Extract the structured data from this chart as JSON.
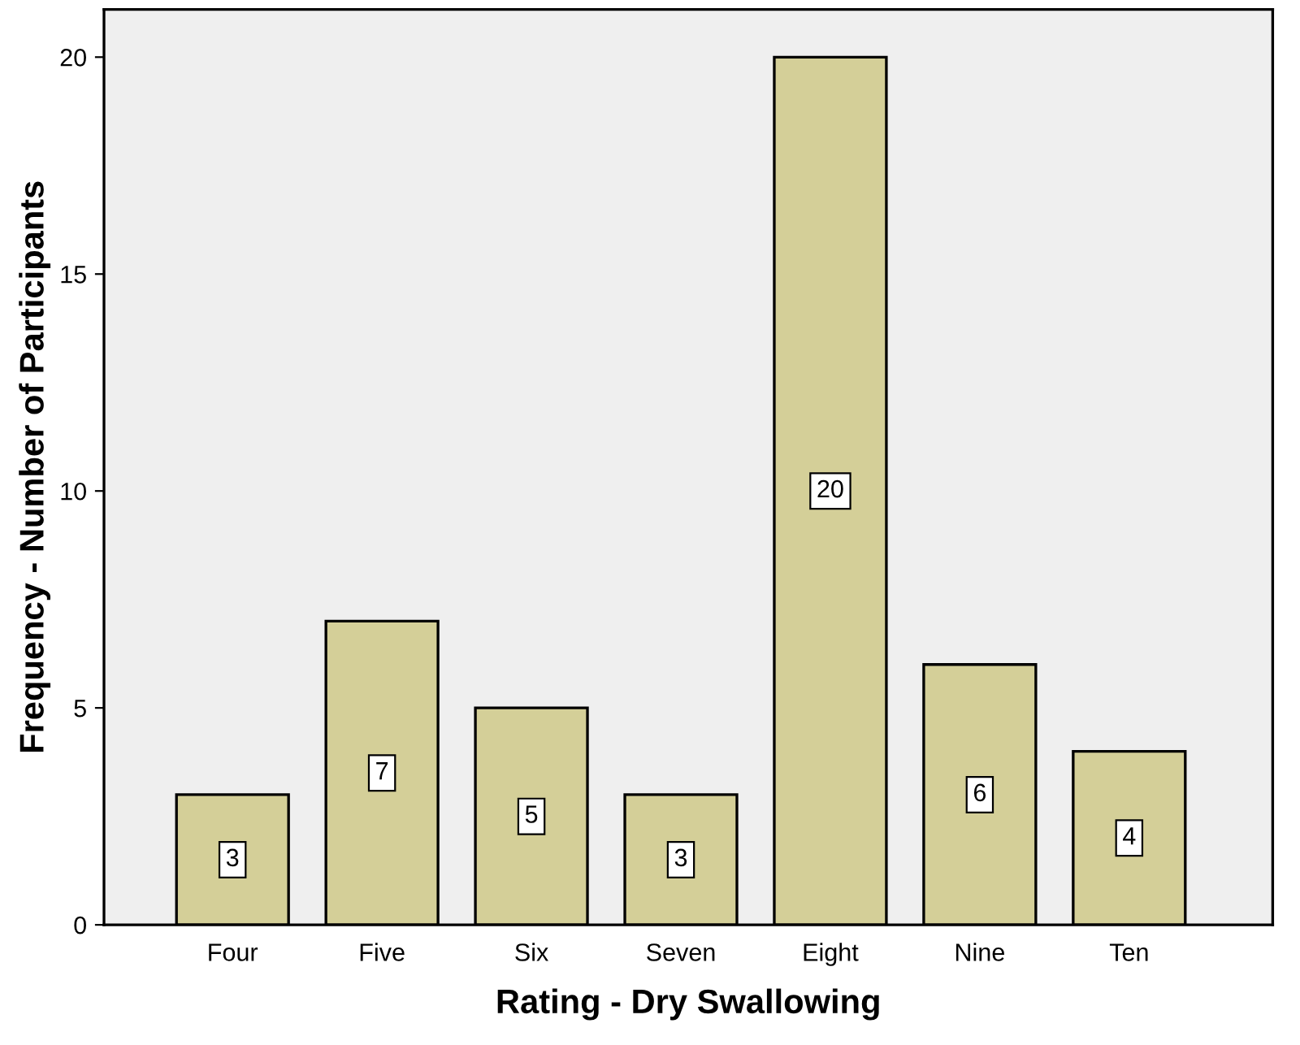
{
  "chart_data": {
    "type": "bar",
    "xlabel": "Rating - Dry Swallowing",
    "ylabel": "Frequency - Number of Participants",
    "categories": [
      "Four",
      "Five",
      "Six",
      "Seven",
      "Eight",
      "Nine",
      "Ten"
    ],
    "values": [
      3,
      7,
      5,
      3,
      20,
      6,
      4
    ],
    "color": "#d4cf98",
    "ylim": [
      0,
      21.1
    ],
    "yticks": [
      0,
      5,
      10,
      15,
      20
    ],
    "data_labels": true,
    "grid": false,
    "legend": false
  }
}
